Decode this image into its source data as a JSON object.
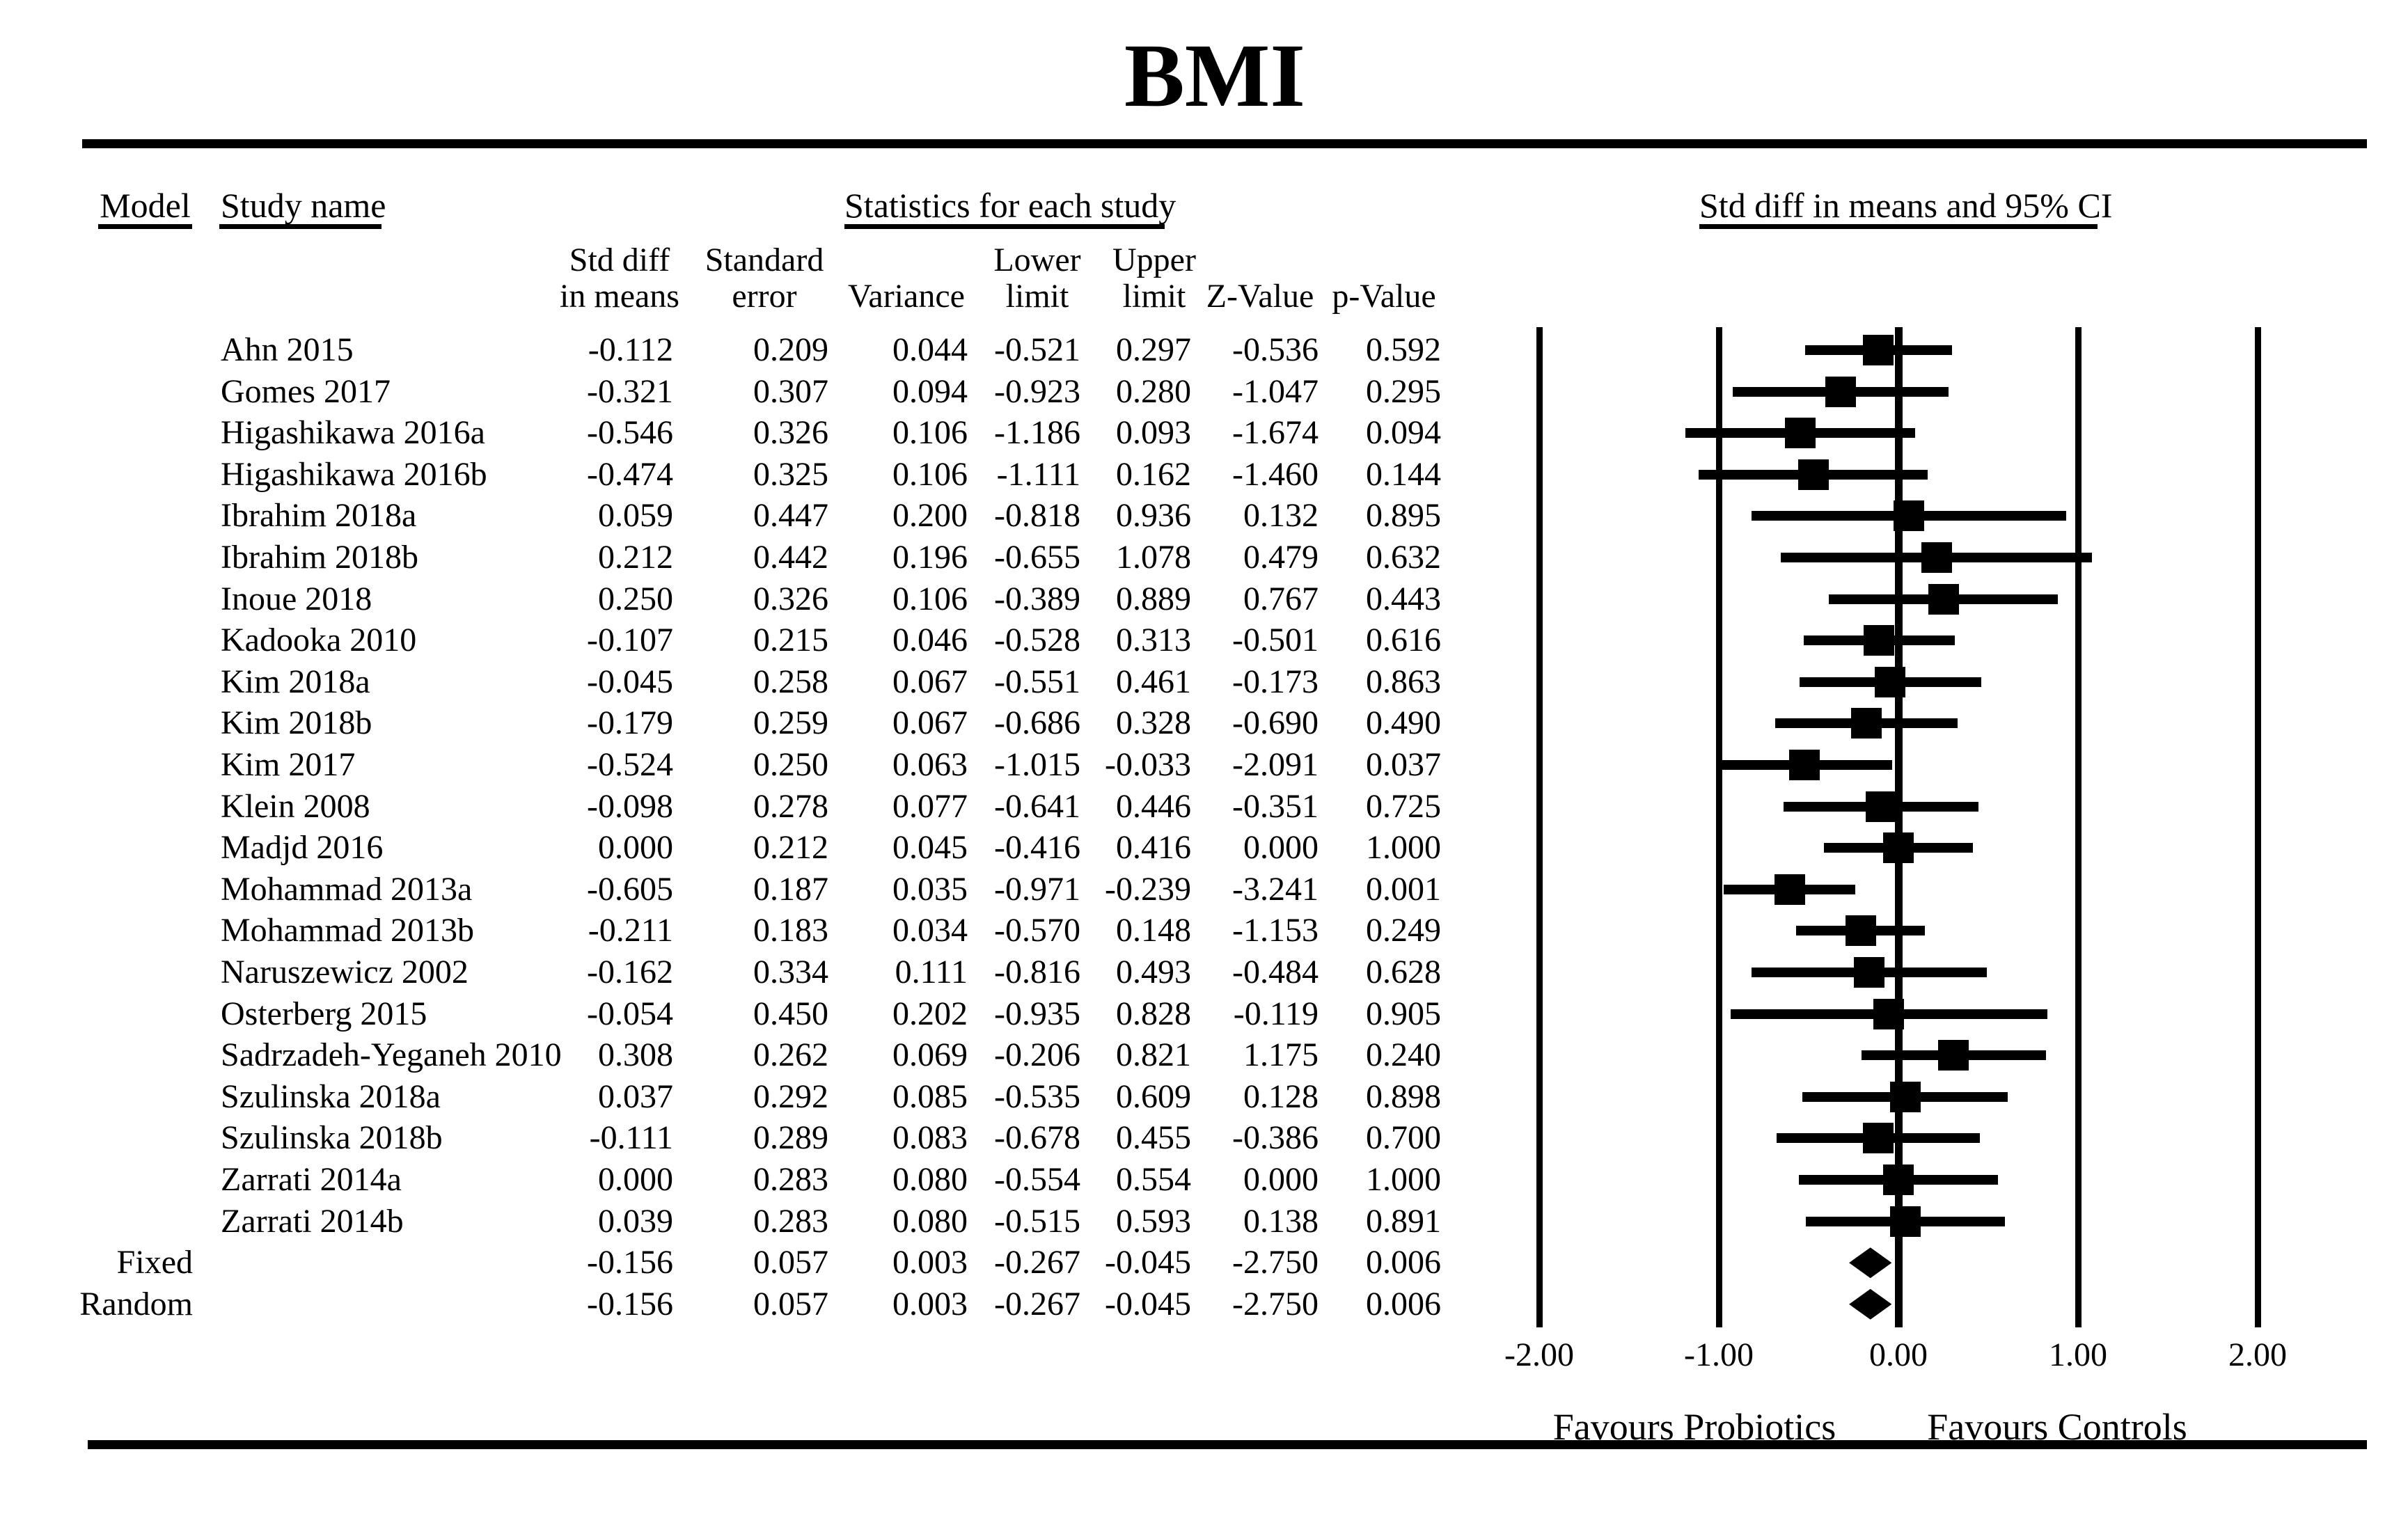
{
  "title": "BMI",
  "table": {
    "model_header": "Model",
    "study_header": "Study name",
    "stats_header": "Statistics for each study",
    "stat_columns": [
      {
        "line1": "Std diff",
        "line2": "in means"
      },
      {
        "line1": "Standard",
        "line2": "error"
      },
      {
        "line1": "",
        "line2": "Variance"
      },
      {
        "line1": "Lower",
        "line2": "limit"
      },
      {
        "line1": "Upper",
        "line2": "limit"
      },
      {
        "line1": "",
        "line2": "Z-Value"
      },
      {
        "line1": "",
        "line2": "p-Value"
      }
    ]
  },
  "chart_data": {
    "type": "forest_plot",
    "title": "BMI",
    "effect_measure": "Std diff in means",
    "ci_header": "Std diff in means and 95% CI",
    "x_axis": {
      "min": -2,
      "max": 2,
      "tick_values": [
        -2,
        -1,
        0,
        1,
        2
      ],
      "tick_labels": [
        "-2.00",
        "-1.00",
        "0.00",
        "1.00",
        "2.00"
      ]
    },
    "footer": {
      "left": "Favours Probiotics",
      "right": "Favours Controls"
    },
    "rows": [
      {
        "model": "",
        "study": "Ahn 2015",
        "std_diff": "-0.112",
        "standard_error": "0.209",
        "variance": "0.044",
        "lower_limit": "-0.521",
        "upper_limit": "0.297",
        "z_value": "-0.536",
        "p_value": "0.592",
        "marker": "square"
      },
      {
        "model": "",
        "study": "Gomes 2017",
        "std_diff": "-0.321",
        "standard_error": "0.307",
        "variance": "0.094",
        "lower_limit": "-0.923",
        "upper_limit": "0.280",
        "z_value": "-1.047",
        "p_value": "0.295",
        "marker": "square"
      },
      {
        "model": "",
        "study": "Higashikawa 2016a",
        "std_diff": "-0.546",
        "standard_error": "0.326",
        "variance": "0.106",
        "lower_limit": "-1.186",
        "upper_limit": "0.093",
        "z_value": "-1.674",
        "p_value": "0.094",
        "marker": "square"
      },
      {
        "model": "",
        "study": "Higashikawa 2016b",
        "std_diff": "-0.474",
        "standard_error": "0.325",
        "variance": "0.106",
        "lower_limit": "-1.111",
        "upper_limit": "0.162",
        "z_value": "-1.460",
        "p_value": "0.144",
        "marker": "square"
      },
      {
        "model": "",
        "study": "Ibrahim 2018a",
        "std_diff": "0.059",
        "standard_error": "0.447",
        "variance": "0.200",
        "lower_limit": "-0.818",
        "upper_limit": "0.936",
        "z_value": "0.132",
        "p_value": "0.895",
        "marker": "square"
      },
      {
        "model": "",
        "study": "Ibrahim 2018b",
        "std_diff": "0.212",
        "standard_error": "0.442",
        "variance": "0.196",
        "lower_limit": "-0.655",
        "upper_limit": "1.078",
        "z_value": "0.479",
        "p_value": "0.632",
        "marker": "square"
      },
      {
        "model": "",
        "study": "Inoue 2018",
        "std_diff": "0.250",
        "standard_error": "0.326",
        "variance": "0.106",
        "lower_limit": "-0.389",
        "upper_limit": "0.889",
        "z_value": "0.767",
        "p_value": "0.443",
        "marker": "square"
      },
      {
        "model": "",
        "study": "Kadooka 2010",
        "std_diff": "-0.107",
        "standard_error": "0.215",
        "variance": "0.046",
        "lower_limit": "-0.528",
        "upper_limit": "0.313",
        "z_value": "-0.501",
        "p_value": "0.616",
        "marker": "square"
      },
      {
        "model": "",
        "study": "Kim 2018a",
        "std_diff": "-0.045",
        "standard_error": "0.258",
        "variance": "0.067",
        "lower_limit": "-0.551",
        "upper_limit": "0.461",
        "z_value": "-0.173",
        "p_value": "0.863",
        "marker": "square"
      },
      {
        "model": "",
        "study": "Kim 2018b",
        "std_diff": "-0.179",
        "standard_error": "0.259",
        "variance": "0.067",
        "lower_limit": "-0.686",
        "upper_limit": "0.328",
        "z_value": "-0.690",
        "p_value": "0.490",
        "marker": "square"
      },
      {
        "model": "",
        "study": "Kim 2017",
        "std_diff": "-0.524",
        "standard_error": "0.250",
        "variance": "0.063",
        "lower_limit": "-1.015",
        "upper_limit": "-0.033",
        "z_value": "-2.091",
        "p_value": "0.037",
        "marker": "square"
      },
      {
        "model": "",
        "study": "Klein 2008",
        "std_diff": "-0.098",
        "standard_error": "0.278",
        "variance": "0.077",
        "lower_limit": "-0.641",
        "upper_limit": "0.446",
        "z_value": "-0.351",
        "p_value": "0.725",
        "marker": "square"
      },
      {
        "model": "",
        "study": "Madjd 2016",
        "std_diff": "0.000",
        "standard_error": "0.212",
        "variance": "0.045",
        "lower_limit": "-0.416",
        "upper_limit": "0.416",
        "z_value": "0.000",
        "p_value": "1.000",
        "marker": "square"
      },
      {
        "model": "",
        "study": "Mohammad 2013a",
        "std_diff": "-0.605",
        "standard_error": "0.187",
        "variance": "0.035",
        "lower_limit": "-0.971",
        "upper_limit": "-0.239",
        "z_value": "-3.241",
        "p_value": "0.001",
        "marker": "square"
      },
      {
        "model": "",
        "study": "Mohammad 2013b",
        "std_diff": "-0.211",
        "standard_error": "0.183",
        "variance": "0.034",
        "lower_limit": "-0.570",
        "upper_limit": "0.148",
        "z_value": "-1.153",
        "p_value": "0.249",
        "marker": "square"
      },
      {
        "model": "",
        "study": "Naruszewicz 2002",
        "std_diff": "-0.162",
        "standard_error": "0.334",
        "variance": "0.111",
        "lower_limit": "-0.816",
        "upper_limit": "0.493",
        "z_value": "-0.484",
        "p_value": "0.628",
        "marker": "square"
      },
      {
        "model": "",
        "study": "Osterberg 2015",
        "std_diff": "-0.054",
        "standard_error": "0.450",
        "variance": "0.202",
        "lower_limit": "-0.935",
        "upper_limit": "0.828",
        "z_value": "-0.119",
        "p_value": "0.905",
        "marker": "square"
      },
      {
        "model": "",
        "study": "Sadrzadeh-Yeganeh 2010",
        "std_diff": "0.308",
        "standard_error": "0.262",
        "variance": "0.069",
        "lower_limit": "-0.206",
        "upper_limit": "0.821",
        "z_value": "1.175",
        "p_value": "0.240",
        "marker": "square"
      },
      {
        "model": "",
        "study": "Szulinska 2018a",
        "std_diff": "0.037",
        "standard_error": "0.292",
        "variance": "0.085",
        "lower_limit": "-0.535",
        "upper_limit": "0.609",
        "z_value": "0.128",
        "p_value": "0.898",
        "marker": "square"
      },
      {
        "model": "",
        "study": "Szulinska 2018b",
        "std_diff": "-0.111",
        "standard_error": "0.289",
        "variance": "0.083",
        "lower_limit": "-0.678",
        "upper_limit": "0.455",
        "z_value": "-0.386",
        "p_value": "0.700",
        "marker": "square"
      },
      {
        "model": "",
        "study": "Zarrati 2014a",
        "std_diff": "0.000",
        "standard_error": "0.283",
        "variance": "0.080",
        "lower_limit": "-0.554",
        "upper_limit": "0.554",
        "z_value": "0.000",
        "p_value": "1.000",
        "marker": "square"
      },
      {
        "model": "",
        "study": "Zarrati 2014b",
        "std_diff": "0.039",
        "standard_error": "0.283",
        "variance": "0.080",
        "lower_limit": "-0.515",
        "upper_limit": "0.593",
        "z_value": "0.138",
        "p_value": "0.891",
        "marker": "square"
      },
      {
        "model": "Fixed",
        "study": "",
        "std_diff": "-0.156",
        "standard_error": "0.057",
        "variance": "0.003",
        "lower_limit": "-0.267",
        "upper_limit": "-0.045",
        "z_value": "-2.750",
        "p_value": "0.006",
        "marker": "diamond"
      },
      {
        "model": "Random",
        "study": "",
        "std_diff": "-0.156",
        "standard_error": "0.057",
        "variance": "0.003",
        "lower_limit": "-0.267",
        "upper_limit": "-0.045",
        "z_value": "-2.750",
        "p_value": "0.006",
        "marker": "diamond"
      }
    ]
  }
}
